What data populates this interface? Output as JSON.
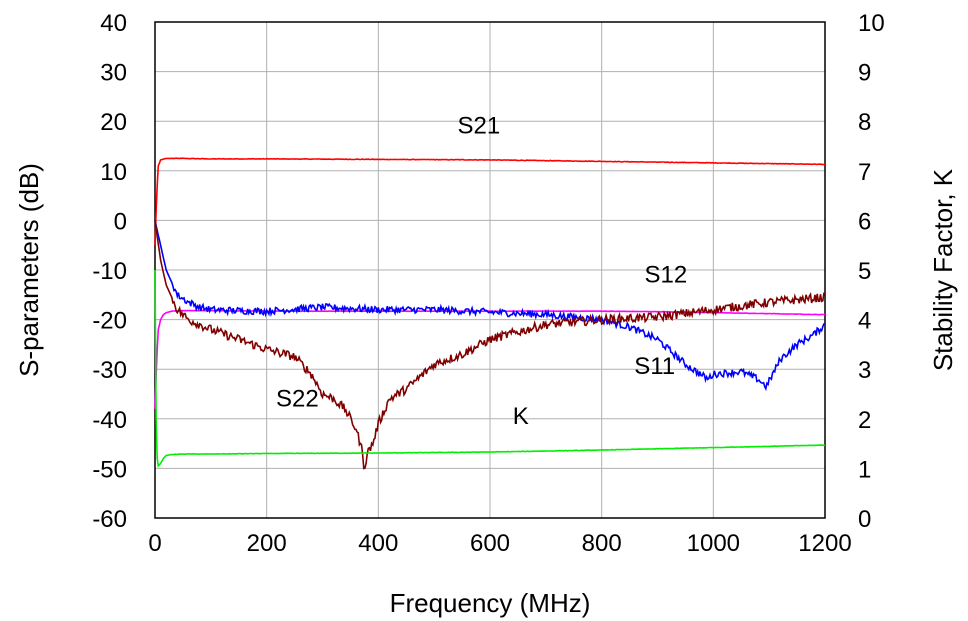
{
  "chart_data": {
    "type": "line",
    "title": "",
    "xlabel": "Frequency (MHz)",
    "ylabel_left": "S-parameters (dB)",
    "ylabel_right": "Stability Factor, K",
    "xlim": [
      0,
      1200
    ],
    "ylim_left": [
      -60,
      40
    ],
    "ylim_right": [
      0,
      10
    ],
    "grid": true,
    "x_ticks": [
      "0",
      "200",
      "400",
      "600",
      "800",
      "1000",
      "1200"
    ],
    "y_left_ticks": [
      "-60",
      "-50",
      "-40",
      "-30",
      "-20",
      "-10",
      "0",
      "10",
      "20",
      "30",
      "40"
    ],
    "y_right_ticks": [
      "0",
      "1",
      "2",
      "3",
      "4",
      "5",
      "6",
      "7",
      "8",
      "9",
      "10"
    ],
    "series": [
      {
        "name": "S21",
        "axis": "left",
        "color": "#ff0000",
        "noise": 0.05,
        "x": [
          0,
          3,
          6,
          10,
          20,
          50,
          100,
          200,
          400,
          600,
          800,
          1000,
          1200
        ],
        "y": [
          -5,
          5,
          11,
          12.2,
          12.5,
          12.5,
          12.4,
          12.4,
          12.3,
          12.2,
          11.9,
          11.6,
          11.3
        ]
      },
      {
        "name": "S12",
        "axis": "left",
        "color": "#ff00ff",
        "noise": 0.03,
        "x": [
          0,
          3,
          6,
          10,
          15,
          20,
          30,
          50,
          100,
          200,
          400,
          600,
          800,
          900,
          1000,
          1100,
          1200
        ],
        "y": [
          -38,
          -28,
          -22,
          -20,
          -19,
          -18.6,
          -18.3,
          -18.2,
          -18.2,
          -18.3,
          -18.3,
          -18.3,
          -18.3,
          -18.4,
          -18.6,
          -18.8,
          -19
        ]
      },
      {
        "name": "S11",
        "axis": "left",
        "color": "#0000ff",
        "noise": 0.7,
        "x": [
          0,
          10,
          20,
          40,
          60,
          80,
          100,
          150,
          200,
          300,
          400,
          500,
          600,
          700,
          750,
          800,
          850,
          900,
          950,
          990,
          1000,
          1050,
          1080,
          1095,
          1120,
          1150,
          1180,
          1200
        ],
        "y": [
          0,
          -5,
          -10,
          -15,
          -16.5,
          -17.5,
          -18,
          -18.2,
          -18.3,
          -17.5,
          -18,
          -18,
          -18.5,
          -19,
          -19.5,
          -20,
          -21.5,
          -24,
          -29,
          -32,
          -31,
          -30.5,
          -32,
          -33.5,
          -28,
          -25,
          -23,
          -21
        ]
      },
      {
        "name": "S22",
        "axis": "left",
        "color": "#800000",
        "noise": 0.9,
        "x": [
          0,
          10,
          20,
          40,
          60,
          80,
          100,
          150,
          200,
          250,
          280,
          300,
          320,
          340,
          360,
          370,
          375,
          380,
          390,
          400,
          420,
          450,
          500,
          550,
          600,
          650,
          700,
          800,
          900,
          1000,
          1100,
          1200
        ],
        "y": [
          0,
          -8,
          -13,
          -18,
          -20,
          -21,
          -22,
          -24,
          -26,
          -27.5,
          -31,
          -35,
          -36,
          -38,
          -42,
          -46,
          -50,
          -47,
          -45,
          -41,
          -36,
          -34,
          -29,
          -27,
          -24,
          -22.5,
          -21,
          -20,
          -19.5,
          -18,
          -16.5,
          -15.5
        ]
      },
      {
        "name": "K",
        "axis": "right",
        "color": "#00ee00",
        "noise": 0.004,
        "x": [
          0,
          2,
          4,
          6,
          10,
          15,
          20,
          30,
          50,
          100,
          200,
          400,
          600,
          800,
          1000,
          1200
        ],
        "y": [
          5,
          2,
          1.2,
          1.05,
          1.1,
          1.2,
          1.26,
          1.28,
          1.29,
          1.29,
          1.3,
          1.31,
          1.33,
          1.37,
          1.42,
          1.47
        ]
      }
    ],
    "annotations": [
      {
        "text": "S21",
        "x": 580,
        "y": 17.5,
        "axis": "left"
      },
      {
        "text": "S12",
        "x": 915,
        "y": -12.5,
        "axis": "left"
      },
      {
        "text": "S11",
        "x": 895,
        "y": -31,
        "axis": "left"
      },
      {
        "text": "S22",
        "x": 255,
        "y": -37.5,
        "axis": "left"
      },
      {
        "text": "K",
        "x": 655,
        "y": 1.9,
        "axis": "right"
      }
    ]
  }
}
